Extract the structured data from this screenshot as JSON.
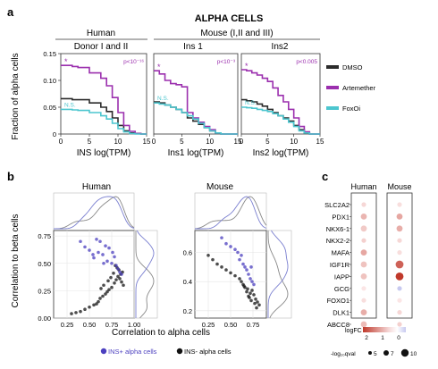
{
  "colors": {
    "dmso": "#2b2b2b",
    "artemether": "#9b2fae",
    "foxoi": "#4cc6cf",
    "ins_pos": "#4b3fbf",
    "ins_neg": "#111111",
    "dot_up": "#c0392b",
    "dot_down": "#7a7fd0"
  },
  "panel_a": {
    "label": "a",
    "title": "ALPHA CELLS",
    "group_human": "Human",
    "group_mouse": "Mouse (I,II and III)",
    "ylabel": "Fraction of alpha cells",
    "legend": [
      "DMSO",
      "Artemether",
      "FoxOi"
    ],
    "subplots": [
      {
        "header": "Donor I and II",
        "xlabel": "INS log(TPM)",
        "pval": "p<10⁻¹⁶",
        "ns": "N.S.",
        "star": "*"
      },
      {
        "header": "Ins 1",
        "xlabel": "Ins1 log(TPM)",
        "pval": "p<10⁻³",
        "ns": "N.S.",
        "star": "*"
      },
      {
        "header": "Ins2",
        "xlabel": "Ins2 log(TPM)",
        "pval": "p<0.005",
        "ns": "N.S.",
        "star": "*"
      }
    ]
  },
  "panel_b": {
    "label": "b",
    "ylabel": "Correlation to beta cells",
    "xlabel": "Correlation to alpha cells",
    "legend_pos": "INS+ alpha cells",
    "legend_neg": "INS- alpha cells",
    "subplots": [
      {
        "title": "Human"
      },
      {
        "title": "Mouse"
      }
    ]
  },
  "panel_c": {
    "label": "c",
    "col_human": "Human",
    "col_mouse": "Mouse",
    "genes": [
      "SLC2A2",
      "PDX1",
      "NKX6-1",
      "NKX2-2",
      "MAFA",
      "IGF1R",
      "IAPP",
      "GCG",
      "FOXO1",
      "DLK1",
      "ABCC8"
    ],
    "logfc_label": "logFC",
    "logfc_ticks": [
      "2",
      "1",
      "0"
    ],
    "size_label": "-log₁₀qval",
    "size_ticks": [
      "5",
      "7",
      "10"
    ]
  },
  "chart_data": [
    {
      "type": "line",
      "title": "Donor I and II",
      "xlabel": "INS log(TPM)",
      "ylabel": "Fraction of alpha cells",
      "xlim": [
        0,
        15
      ],
      "ylim": [
        0,
        0.15
      ],
      "xticks": [
        "0",
        "5",
        "10",
        "15"
      ],
      "yticks": [
        "0",
        "0.05",
        "0.10",
        "0.15"
      ],
      "series": [
        {
          "name": "DMSO",
          "x": [
            0,
            2,
            3,
            5,
            7,
            8,
            9,
            10,
            11,
            12,
            13,
            14
          ],
          "y": [
            0.066,
            0.064,
            0.064,
            0.058,
            0.05,
            0.042,
            0.03,
            0.016,
            0.006,
            0.002,
            0.001,
            0
          ]
        },
        {
          "name": "Artemether",
          "x": [
            0,
            2,
            3,
            5,
            7,
            8,
            9,
            10,
            11,
            12,
            13,
            14
          ],
          "y": [
            0.128,
            0.126,
            0.124,
            0.114,
            0.104,
            0.09,
            0.068,
            0.04,
            0.016,
            0.005,
            0.001,
            0
          ]
        },
        {
          "name": "FoxOi",
          "x": [
            0,
            2,
            3,
            5,
            7,
            8,
            9,
            10,
            11,
            12,
            13,
            14
          ],
          "y": [
            0.046,
            0.045,
            0.044,
            0.04,
            0.034,
            0.028,
            0.02,
            0.01,
            0.004,
            0.001,
            0,
            0
          ]
        }
      ]
    },
    {
      "type": "line",
      "title": "Ins 1",
      "xlabel": "Ins1 log(TPM)",
      "ylabel": "Fraction of alpha cells",
      "xlim": [
        0,
        15
      ],
      "ylim": [
        0,
        0.15
      ],
      "xticks": [
        "0",
        "5",
        "10",
        "15"
      ],
      "series": [
        {
          "name": "DMSO",
          "x": [
            0,
            1,
            2,
            3,
            4,
            5,
            6,
            7,
            8,
            9,
            10,
            11,
            12
          ],
          "y": [
            0.06,
            0.058,
            0.054,
            0.05,
            0.046,
            0.04,
            0.03,
            0.024,
            0.018,
            0.012,
            0.006,
            0.002,
            0
          ]
        },
        {
          "name": "Artemether",
          "x": [
            0,
            1,
            2,
            3,
            4,
            5,
            6,
            7,
            8,
            9,
            10,
            11,
            12
          ],
          "y": [
            0.118,
            0.112,
            0.1,
            0.094,
            0.092,
            0.088,
            0.04,
            0.03,
            0.022,
            0.014,
            0.008,
            0.002,
            0
          ]
        },
        {
          "name": "FoxOi",
          "x": [
            0,
            1,
            2,
            3,
            4,
            5,
            6,
            7,
            8,
            9,
            10,
            11,
            12
          ],
          "y": [
            0.058,
            0.056,
            0.054,
            0.05,
            0.046,
            0.04,
            0.034,
            0.028,
            0.02,
            0.012,
            0.006,
            0.002,
            0
          ]
        }
      ]
    },
    {
      "type": "line",
      "title": "Ins2",
      "xlabel": "Ins2 log(TPM)",
      "ylabel": "Fraction of alpha cells",
      "xlim": [
        0,
        15
      ],
      "ylim": [
        0,
        0.15
      ],
      "xticks": [
        "0",
        "5",
        "10",
        "15"
      ],
      "series": [
        {
          "name": "DMSO",
          "x": [
            0,
            1,
            2,
            3,
            4,
            5,
            6,
            7,
            8,
            9,
            10,
            11,
            12,
            13
          ],
          "y": [
            0.064,
            0.062,
            0.06,
            0.056,
            0.052,
            0.046,
            0.04,
            0.034,
            0.03,
            0.024,
            0.016,
            0.008,
            0.002,
            0
          ]
        },
        {
          "name": "Artemether",
          "x": [
            0,
            1,
            2,
            3,
            4,
            5,
            6,
            7,
            8,
            9,
            10,
            11,
            12,
            13
          ],
          "y": [
            0.12,
            0.118,
            0.114,
            0.11,
            0.104,
            0.098,
            0.086,
            0.072,
            0.06,
            0.046,
            0.03,
            0.014,
            0.004,
            0
          ]
        },
        {
          "name": "FoxOi",
          "x": [
            0,
            1,
            2,
            3,
            4,
            5,
            6,
            7,
            8,
            9,
            10,
            11,
            12,
            13
          ],
          "y": [
            0.05,
            0.049,
            0.048,
            0.046,
            0.044,
            0.042,
            0.038,
            0.034,
            0.028,
            0.022,
            0.014,
            0.006,
            0.002,
            0
          ]
        }
      ]
    },
    {
      "type": "scatter",
      "title": "Human",
      "xlabel": "Correlation to alpha cells",
      "ylabel": "Correlation to beta cells",
      "xlim": [
        0.1,
        1.0
      ],
      "ylim": [
        0.0,
        0.8
      ],
      "xticks": [
        "0.25",
        "0.50",
        "0.75",
        "1.00"
      ],
      "yticks": [
        "0.00",
        "0.25",
        "0.50",
        "0.75"
      ],
      "series": [
        {
          "name": "INS- alpha cells",
          "x": [
            0.78,
            0.8,
            0.82,
            0.84,
            0.86,
            0.88,
            0.75,
            0.72,
            0.7,
            0.68,
            0.65,
            0.62,
            0.6,
            0.58,
            0.55,
            0.5,
            0.45,
            0.4,
            0.35,
            0.3,
            0.85,
            0.87,
            0.83,
            0.81,
            0.79,
            0.77,
            0.74,
            0.71,
            0.66,
            0.63
          ],
          "y": [
            0.32,
            0.35,
            0.38,
            0.36,
            0.33,
            0.3,
            0.28,
            0.26,
            0.24,
            0.22,
            0.2,
            0.18,
            0.15,
            0.13,
            0.12,
            0.1,
            0.08,
            0.06,
            0.05,
            0.04,
            0.4,
            0.42,
            0.44,
            0.46,
            0.48,
            0.41,
            0.37,
            0.34,
            0.3,
            0.27
          ]
        },
        {
          "name": "INS+ alpha cells",
          "x": [
            0.55,
            0.6,
            0.65,
            0.7,
            0.75,
            0.8,
            0.82,
            0.84,
            0.86,
            0.5,
            0.45,
            0.4,
            0.72,
            0.68,
            0.62,
            0.58,
            0.78,
            0.76,
            0.66,
            0.54
          ],
          "y": [
            0.55,
            0.6,
            0.58,
            0.52,
            0.5,
            0.48,
            0.45,
            0.42,
            0.4,
            0.62,
            0.65,
            0.7,
            0.64,
            0.66,
            0.7,
            0.72,
            0.56,
            0.6,
            0.5,
            0.58
          ]
        }
      ]
    },
    {
      "type": "scatter",
      "title": "Mouse",
      "xlabel": "Correlation to alpha cells",
      "ylabel": "Correlation to beta cells",
      "xlim": [
        0.1,
        0.9
      ],
      "ylim": [
        0.15,
        0.75
      ],
      "xticks": [
        "0.25",
        "0.50",
        "0.75"
      ],
      "yticks": [
        "0.2",
        "0.4",
        "0.6"
      ],
      "series": [
        {
          "name": "INS- alpha cells",
          "x": [
            0.7,
            0.72,
            0.74,
            0.76,
            0.78,
            0.8,
            0.68,
            0.66,
            0.64,
            0.62,
            0.6,
            0.55,
            0.5,
            0.45,
            0.4,
            0.35,
            0.3,
            0.25,
            0.82,
            0.79,
            0.77,
            0.73,
            0.71,
            0.69,
            0.65
          ],
          "y": [
            0.3,
            0.32,
            0.34,
            0.31,
            0.28,
            0.26,
            0.33,
            0.36,
            0.38,
            0.4,
            0.42,
            0.44,
            0.46,
            0.48,
            0.5,
            0.52,
            0.55,
            0.58,
            0.24,
            0.22,
            0.25,
            0.27,
            0.29,
            0.35,
            0.37
          ]
        },
        {
          "name": "INS+ alpha cells",
          "x": [
            0.7,
            0.72,
            0.74,
            0.68,
            0.66,
            0.64,
            0.6,
            0.62,
            0.58,
            0.55,
            0.5,
            0.45,
            0.4,
            0.76,
            0.73
          ],
          "y": [
            0.45,
            0.42,
            0.4,
            0.48,
            0.5,
            0.52,
            0.55,
            0.58,
            0.6,
            0.62,
            0.64,
            0.66,
            0.7,
            0.38,
            0.5
          ]
        }
      ]
    },
    {
      "type": "heatmap",
      "title": "",
      "columns": [
        "Human",
        "Mouse"
      ],
      "rows": [
        "SLC2A2",
        "PDX1",
        "NKX6-1",
        "NKX2-2",
        "MAFA",
        "IGF1R",
        "IAPP",
        "GCG",
        "FOXO1",
        "DLK1",
        "ABCC8"
      ],
      "logFC": [
        [
          0.3,
          0.2
        ],
        [
          0.8,
          1.0
        ],
        [
          0.5,
          0.9
        ],
        [
          0.4,
          0.3
        ],
        [
          1.0,
          0.2
        ],
        [
          0.6,
          2.0
        ],
        [
          0.6,
          2.6
        ],
        [
          0.1,
          -0.4
        ],
        [
          0.2,
          0.1
        ],
        [
          0.9,
          0.3
        ],
        [
          0.7,
          0.4
        ]
      ],
      "neg_log10_qval": [
        [
          5,
          5
        ],
        [
          7,
          7
        ],
        [
          7,
          7
        ],
        [
          5,
          5
        ],
        [
          7,
          5
        ],
        [
          7,
          10
        ],
        [
          7,
          10
        ],
        [
          5,
          5
        ],
        [
          5,
          5
        ],
        [
          7,
          5
        ],
        [
          7,
          5
        ]
      ]
    }
  ]
}
